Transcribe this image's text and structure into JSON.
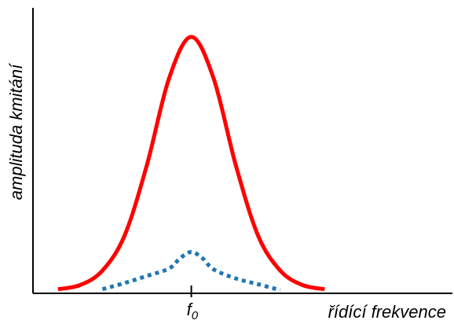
{
  "chart_data": {
    "type": "line",
    "title": "",
    "xlabel": "řídící frekvence",
    "ylabel": "amplituda kmitání",
    "grid": false,
    "legend": "none",
    "x_ticks": [
      {
        "x": 0,
        "label_main": "f",
        "label_sub": "0"
      }
    ],
    "series": [
      {
        "color": "#ff0000",
        "style": "solid",
        "x": [
          -2.4,
          -2.0,
          -1.6,
          -1.2,
          -0.8,
          -0.4,
          0.0,
          0.4,
          0.8,
          1.2,
          1.6,
          2.0,
          2.4
        ],
        "y": [
          1.0,
          2.0,
          5.5,
          14.0,
          31.0,
          52.0,
          62.0,
          52.0,
          31.0,
          14.0,
          5.5,
          2.0,
          1.0
        ]
      },
      {
        "color": "#1f77b4",
        "style": "dotted",
        "x": [
          -1.6,
          -1.2,
          -0.8,
          -0.4,
          -0.2,
          0.0,
          0.2,
          0.4,
          0.8,
          1.2,
          1.6
        ],
        "y": [
          1.0,
          2.5,
          4.2,
          6.0,
          8.5,
          10.0,
          8.5,
          5.8,
          3.6,
          2.2,
          0.8
        ]
      }
    ],
    "xlim": [
      -2.85,
      4.7
    ],
    "ylim": [
      0,
      69
    ]
  }
}
